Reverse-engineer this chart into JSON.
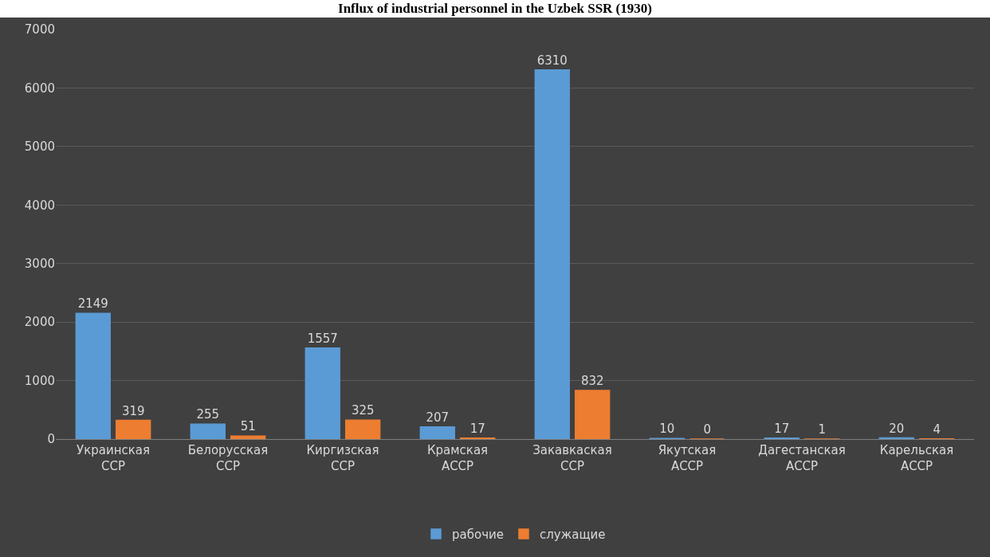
{
  "chart_data": {
    "type": "bar",
    "title": "Influx of industrial personnel in the Uzbek SSR (1930)",
    "categories": [
      "Украинская ССР",
      "Белорусская ССР",
      "Киргизская ССР",
      "Крамская АССР",
      "Закавкаская ССР",
      "Якутская АССР",
      "Дагестанская АССР",
      "Карельская АССР"
    ],
    "series": [
      {
        "name": "рабочие",
        "color": "#5b9bd5",
        "values": [
          2149,
          255,
          1557,
          207,
          6310,
          10,
          17,
          20
        ]
      },
      {
        "name": "служащие",
        "color": "#ed7d31",
        "values": [
          319,
          51,
          325,
          17,
          832,
          0,
          1,
          4
        ]
      }
    ],
    "ylim": [
      0,
      7000
    ],
    "yticks": [
      0,
      1000,
      2000,
      3000,
      4000,
      5000,
      6000,
      7000
    ],
    "grid": "y",
    "legend": "bottom",
    "data_labels": true
  }
}
